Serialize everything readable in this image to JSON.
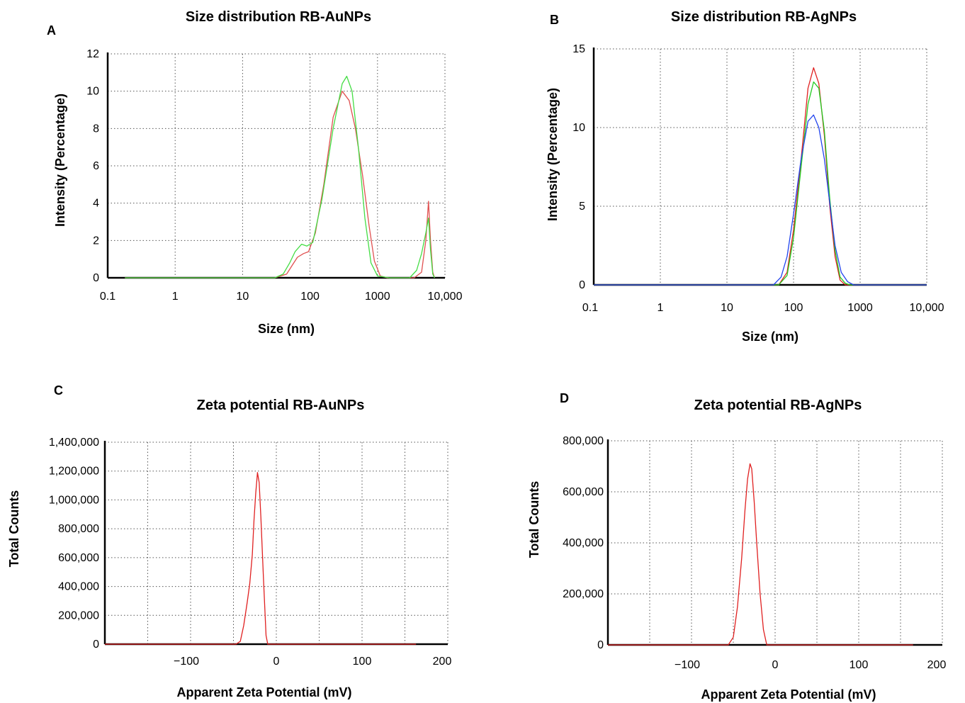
{
  "chart_data": [
    {
      "panel": "A",
      "type": "line",
      "title": "Size distribution RB-AuNPs",
      "xlabel": "Size (nm)",
      "ylabel": "Intensity (Percentage)",
      "xscale": "log",
      "xlim": [
        0.1,
        10000
      ],
      "ylim": [
        0,
        12
      ],
      "x_ticks": [
        "0.1",
        "1",
        "10",
        "100",
        "1000",
        "10,000"
      ],
      "y_ticks": [
        "0",
        "2",
        "4",
        "6",
        "8",
        "10",
        "12"
      ],
      "grid": true,
      "series": [
        {
          "color": "#e05050",
          "x": [
            0.18,
            30,
            45,
            55,
            65,
            80,
            95,
            120,
            160,
            220,
            300,
            380,
            470,
            600,
            750,
            900,
            1100,
            1400,
            3500,
            4500,
            5200,
            5700,
            6100,
            6600,
            7000
          ],
          "y": [
            0,
            0,
            0.2,
            0.7,
            1.1,
            1.3,
            1.4,
            2.4,
            5.0,
            8.6,
            10.0,
            9.5,
            8.0,
            5.5,
            2.8,
            0.9,
            0.1,
            0,
            0,
            0.3,
            2.0,
            4.1,
            2.0,
            0.3,
            0
          ]
        },
        {
          "color": "#44dd44",
          "x": [
            0.18,
            30,
            40,
            50,
            60,
            75,
            90,
            110,
            150,
            220,
            300,
            350,
            420,
            520,
            650,
            800,
            1000,
            1500,
            3000,
            3800,
            4500,
            5200,
            5700,
            6100,
            6600,
            7000
          ],
          "y": [
            0,
            0,
            0.2,
            0.8,
            1.4,
            1.8,
            1.7,
            1.9,
            4.2,
            8.0,
            10.4,
            10.8,
            10.0,
            7.0,
            3.2,
            0.8,
            0.1,
            0,
            0,
            0.4,
            1.3,
            2.4,
            3.2,
            1.5,
            0.2,
            0
          ]
        }
      ]
    },
    {
      "panel": "B",
      "type": "line",
      "title": "Size distribution RB-AgNPs",
      "xlabel": "Size (nm)",
      "ylabel": "Intensity (Percentage)",
      "xscale": "log",
      "xlim": [
        0.1,
        10000
      ],
      "ylim": [
        0,
        15
      ],
      "x_ticks": [
        "0.1",
        "1",
        "10",
        "100",
        "1000",
        "10,000"
      ],
      "y_ticks": [
        "0",
        "5",
        "10",
        "15"
      ],
      "grid": true,
      "series": [
        {
          "color": "#e02020",
          "x": [
            0.1,
            60,
            80,
            100,
            130,
            165,
            200,
            240,
            290,
            350,
            420,
            500,
            600,
            10000
          ],
          "y": [
            0,
            0,
            0.8,
            3.5,
            8.0,
            12.5,
            13.8,
            12.8,
            9.5,
            5.0,
            1.8,
            0.3,
            0,
            0
          ]
        },
        {
          "color": "#22cc22",
          "x": [
            0.1,
            60,
            80,
            100,
            130,
            165,
            200,
            240,
            290,
            350,
            420,
            500,
            600,
            700,
            10000
          ],
          "y": [
            0,
            0,
            0.6,
            3.0,
            7.5,
            11.5,
            12.9,
            12.5,
            9.8,
            5.5,
            2.2,
            0.5,
            0.1,
            0,
            0
          ]
        },
        {
          "color": "#2244ee",
          "x": [
            0.1,
            50,
            65,
            80,
            100,
            130,
            165,
            200,
            240,
            290,
            350,
            420,
            520,
            650,
            800,
            10000
          ],
          "y": [
            0,
            0,
            0.5,
            1.8,
            4.5,
            8.0,
            10.4,
            10.8,
            10.0,
            8.0,
            5.2,
            2.5,
            0.8,
            0.2,
            0,
            0
          ]
        }
      ]
    },
    {
      "panel": "C",
      "type": "line",
      "title": "Zeta potential RB-AuNPs",
      "xlabel": "Apparent Zeta Potential  (mV)",
      "ylabel": "Total Counts",
      "xlim": [
        -200,
        200
      ],
      "ylim": [
        0,
        1400000
      ],
      "x_ticks": [
        "−100",
        "0",
        "100",
        "200"
      ],
      "y_ticks": [
        "0",
        "200,000",
        "400,000",
        "600,000",
        "800,000",
        "1,000,000",
        "1,200,000",
        "1,400,000"
      ],
      "grid": true,
      "series": [
        {
          "color": "#e02020",
          "x": [
            -200,
            -47,
            -42,
            -38,
            -34,
            -31,
            -28,
            -26,
            -24,
            -22,
            -20,
            -18,
            -15,
            -12,
            -10,
            163
          ],
          "y": [
            0,
            0,
            20000,
            130000,
            290000,
            420000,
            620000,
            860000,
            1050000,
            1190000,
            1120000,
            880000,
            450000,
            60000,
            0,
            0
          ]
        }
      ]
    },
    {
      "panel": "D",
      "type": "line",
      "title": "Zeta potential RB-AgNPs",
      "xlabel": "Apparent Zeta Potential  (mV)",
      "ylabel": "Total Counts",
      "xlim": [
        -200,
        200
      ],
      "ylim": [
        0,
        800000
      ],
      "x_ticks": [
        "−100",
        "0",
        "100",
        "200"
      ],
      "y_ticks": [
        "0",
        "200,000",
        "400,000",
        "600,000",
        "800,000"
      ],
      "grid": true,
      "series": [
        {
          "color": "#e02020",
          "x": [
            -200,
            -56,
            -50,
            -45,
            -40,
            -36,
            -33,
            -30,
            -28,
            -25,
            -22,
            -18,
            -14,
            -10,
            165
          ],
          "y": [
            0,
            0,
            30000,
            150000,
            340000,
            530000,
            650000,
            710000,
            690000,
            560000,
            400000,
            200000,
            60000,
            0,
            0
          ]
        }
      ]
    }
  ]
}
